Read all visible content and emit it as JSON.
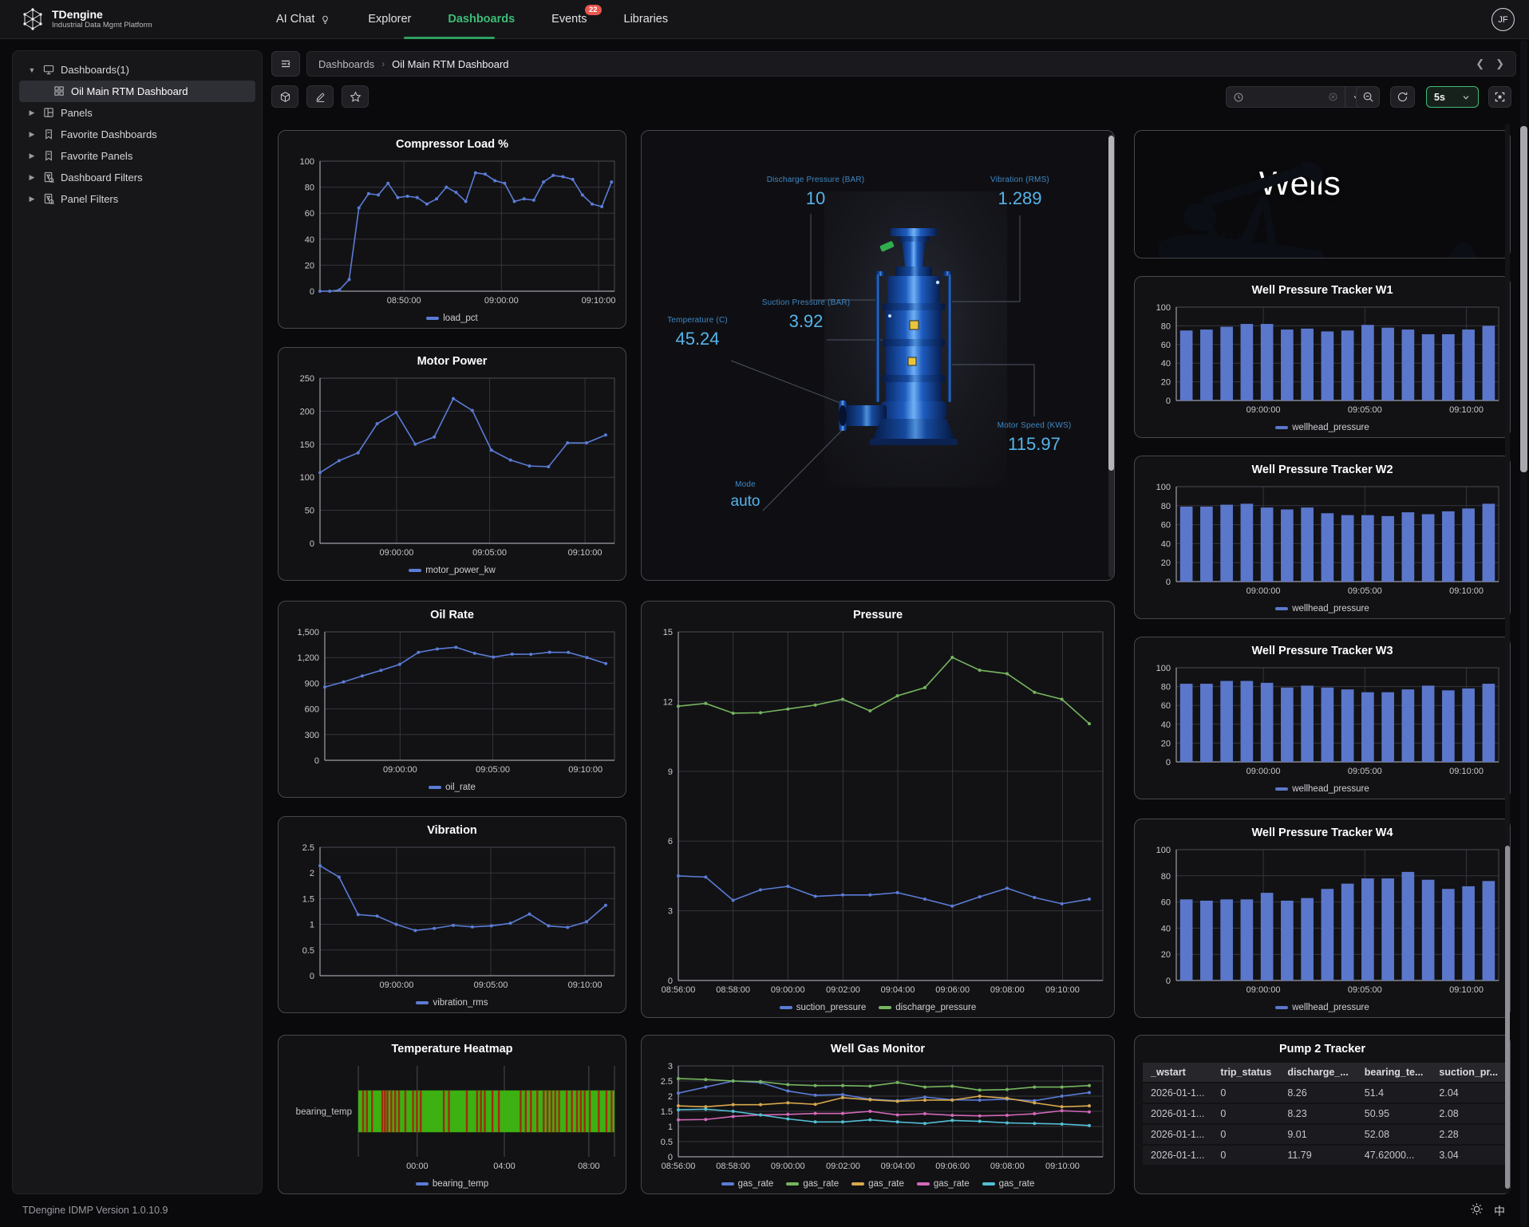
{
  "topnav": {
    "brand": "TDengine",
    "brand_sub": "Industrial Data Mgmt Platform",
    "items": [
      {
        "label": "AI Chat"
      },
      {
        "label": "Explorer"
      },
      {
        "label": "Dashboards"
      },
      {
        "label": "Events",
        "badge": "22"
      },
      {
        "label": "Libraries"
      }
    ],
    "avatar": "JF"
  },
  "sidebar": {
    "items": [
      {
        "label": "Dashboards(1)",
        "icon": "monitor",
        "caret": "down",
        "level": 0,
        "selected": false
      },
      {
        "label": "Oil Main RTM Dashboard",
        "icon": "grid",
        "caret": "none",
        "level": 1,
        "selected": true
      },
      {
        "label": "Panels",
        "icon": "panel",
        "caret": "right",
        "level": 0,
        "selected": false
      },
      {
        "label": "Favorite Dashboards",
        "icon": "bookmark",
        "caret": "right",
        "level": 0,
        "selected": false
      },
      {
        "label": "Favorite Panels",
        "icon": "bookmark",
        "caret": "right",
        "level": 0,
        "selected": false
      },
      {
        "label": "Dashboard Filters",
        "icon": "filter",
        "caret": "right",
        "level": 0,
        "selected": false
      },
      {
        "label": "Panel Filters",
        "icon": "filter",
        "caret": "right",
        "level": 0,
        "selected": false
      }
    ]
  },
  "breadcrumb": {
    "root": "Dashboards",
    "separator": "›",
    "current": "Oil Main RTM Dashboard"
  },
  "toolbar": {
    "refresh_interval": "5s"
  },
  "footer": {
    "version": "TDengine IDMP Version 1.0.10.9",
    "lang_toggle": "中"
  },
  "wells_panel": {
    "title": "Wells"
  },
  "pump_panel": {
    "mode_value": "auto",
    "annotations": [
      {
        "label": "Discharge Pressure (BAR)",
        "value": "10"
      },
      {
        "label": "Vibration (RMS)",
        "value": "1.289"
      },
      {
        "label": "Suction Pressure (BAR)",
        "value": "3.92"
      },
      {
        "label": "Temperature (C)",
        "value": "45.24"
      },
      {
        "label": "Motor Speed (KWS)",
        "value": "115.97"
      },
      {
        "label": "Mode",
        "value": "auto"
      }
    ]
  },
  "table": {
    "title": "Pump 2 Tracker",
    "headers": [
      "_wstart",
      "trip_status",
      "discharge_...",
      "bearing_te...",
      "suction_pr..."
    ],
    "rows": [
      [
        "2026-01-1...",
        "0",
        "8.26",
        "51.4",
        "2.04"
      ],
      [
        "2026-01-1...",
        "0",
        "8.23",
        "50.95",
        "2.08"
      ],
      [
        "2026-01-1...",
        "0",
        "9.01",
        "52.08",
        "2.28"
      ],
      [
        "2026-01-1...",
        "0",
        "11.79",
        "47.62000...",
        "3.04"
      ]
    ]
  },
  "chart_data": [
    {
      "id": "compressor",
      "type": "line",
      "title": "Compressor Load %",
      "ylim": [
        0,
        100
      ],
      "yticks": [
        0,
        20,
        40,
        60,
        80,
        100
      ],
      "ylabels": [
        "0",
        "20",
        "40",
        "60",
        "80",
        "100"
      ],
      "xticks": [
        {
          "f": 0.285,
          "label": "08:50:00"
        },
        {
          "f": 0.616,
          "label": "09:00:00"
        },
        {
          "f": 0.946,
          "label": "09:10:00"
        }
      ],
      "xlast": 0.99,
      "series": [
        {
          "name": "load_pct",
          "color": "#5b7cd5",
          "values": [
            0,
            0,
            1,
            9,
            64,
            75,
            74,
            83,
            72,
            73,
            72,
            67,
            71,
            80,
            76,
            69,
            91,
            90,
            85,
            83,
            69,
            71,
            70,
            84,
            89,
            88,
            86,
            74,
            67,
            65,
            84
          ]
        }
      ]
    },
    {
      "id": "motor",
      "type": "line",
      "title": "Motor Power",
      "ylim": [
        0,
        250
      ],
      "yticks": [
        0,
        50,
        100,
        150,
        200,
        250
      ],
      "ylabels": [
        "0",
        "50",
        "100",
        "150",
        "200",
        "250"
      ],
      "xticks": [
        {
          "f": 0.26,
          "label": "09:00:00"
        },
        {
          "f": 0.576,
          "label": "09:05:00"
        },
        {
          "f": 0.9,
          "label": "09:10:00"
        }
      ],
      "xlast": 0.97,
      "series": [
        {
          "name": "motor_power_kw",
          "color": "#5b7cd5",
          "values": [
            107,
            125,
            137,
            181,
            198,
            150,
            161,
            219,
            201,
            141,
            126,
            117,
            116,
            152,
            152,
            164
          ]
        }
      ]
    },
    {
      "id": "oil",
      "type": "line",
      "title": "Oil Rate",
      "ylim": [
        0,
        1500
      ],
      "yticks": [
        0,
        300,
        600,
        900,
        1200,
        1500
      ],
      "ylabels": [
        "0",
        "300",
        "600",
        "900",
        "1,200",
        "1,500"
      ],
      "xticks": [
        {
          "f": 0.26,
          "label": "09:00:00"
        },
        {
          "f": 0.58,
          "label": "09:05:00"
        },
        {
          "f": 0.9,
          "label": "09:10:00"
        }
      ],
      "xlast": 0.97,
      "series": [
        {
          "name": "oil_rate",
          "color": "#5b7cd5",
          "values": [
            855,
            915,
            985,
            1050,
            1120,
            1260,
            1300,
            1320,
            1250,
            1205,
            1240,
            1238,
            1262,
            1260,
            1200,
            1130
          ]
        }
      ]
    },
    {
      "id": "vib",
      "type": "line",
      "title": "Vibration",
      "ylim": [
        0,
        2.5
      ],
      "yticks": [
        0,
        0.5,
        1,
        1.5,
        2,
        2.5
      ],
      "ylabels": [
        "0",
        "0.5",
        "1",
        "1.5",
        "2",
        "2.5"
      ],
      "xticks": [
        {
          "f": 0.26,
          "label": "09:00:00"
        },
        {
          "f": 0.58,
          "label": "09:05:00"
        },
        {
          "f": 0.9,
          "label": "09:10:00"
        }
      ],
      "xlast": 0.97,
      "series": [
        {
          "name": "vibration_rms",
          "color": "#5b7cd5",
          "values": [
            2.14,
            1.92,
            1.19,
            1.16,
            1.0,
            0.88,
            0.92,
            0.98,
            0.95,
            0.97,
            1.02,
            1.2,
            0.97,
            0.94,
            1.05,
            1.37
          ]
        }
      ]
    },
    {
      "id": "pressure",
      "type": "line",
      "title": "Pressure",
      "ylim": [
        0,
        15
      ],
      "yticks": [
        0,
        3,
        6,
        9,
        12,
        15
      ],
      "ylabels": [
        "0",
        "3",
        "6",
        "9",
        "12",
        "15"
      ],
      "xticks": [
        {
          "f": 0.0,
          "label": "08:56:00"
        },
        {
          "f": 0.129,
          "label": "08:58:00"
        },
        {
          "f": 0.258,
          "label": "09:00:00"
        },
        {
          "f": 0.388,
          "label": "09:02:00"
        },
        {
          "f": 0.517,
          "label": "09:04:00"
        },
        {
          "f": 0.646,
          "label": "09:06:00"
        },
        {
          "f": 0.775,
          "label": "09:08:00"
        },
        {
          "f": 0.905,
          "label": "09:10:00"
        }
      ],
      "xlast": 0.968,
      "series": [
        {
          "name": "suction_pressure",
          "color": "#5b7cd5",
          "values": [
            4.5,
            4.45,
            3.45,
            3.9,
            4.05,
            3.62,
            3.68,
            3.68,
            3.78,
            3.5,
            3.2,
            3.6,
            3.97,
            3.57,
            3.3,
            3.5
          ]
        },
        {
          "name": "discharge_pressure",
          "color": "#76b55e",
          "values": [
            11.8,
            11.92,
            11.5,
            11.52,
            11.68,
            11.85,
            12.1,
            11.6,
            12.25,
            12.6,
            13.9,
            13.35,
            13.2,
            12.4,
            12.1,
            11.05
          ]
        }
      ]
    },
    {
      "id": "gas",
      "type": "line",
      "title": "Well Gas Monitor",
      "ylim": [
        0,
        3
      ],
      "yticks": [
        0,
        0.5,
        1,
        1.5,
        2,
        2.5,
        3
      ],
      "ylabels": [
        "0",
        "0.5",
        "1",
        "1.5",
        "2",
        "2.5",
        "3"
      ],
      "xticks": [
        {
          "f": 0.0,
          "label": "08:56:00"
        },
        {
          "f": 0.129,
          "label": "08:58:00"
        },
        {
          "f": 0.258,
          "label": "09:00:00"
        },
        {
          "f": 0.388,
          "label": "09:02:00"
        },
        {
          "f": 0.517,
          "label": "09:04:00"
        },
        {
          "f": 0.646,
          "label": "09:06:00"
        },
        {
          "f": 0.775,
          "label": "09:08:00"
        },
        {
          "f": 0.905,
          "label": "09:10:00"
        }
      ],
      "xlast": 0.968,
      "series": [
        {
          "name": "gas_rate",
          "color": "#5b7cd5",
          "values": [
            2.1,
            2.3,
            2.5,
            2.45,
            2.17,
            2.03,
            2.05,
            1.9,
            1.85,
            1.97,
            1.88,
            1.87,
            1.9,
            1.85,
            2.0,
            2.12
          ]
        },
        {
          "name": "gas_rate",
          "color": "#76b55e",
          "values": [
            2.58,
            2.55,
            2.5,
            2.48,
            2.38,
            2.35,
            2.35,
            2.33,
            2.45,
            2.3,
            2.33,
            2.2,
            2.22,
            2.3,
            2.3,
            2.35
          ]
        },
        {
          "name": "gas_rate",
          "color": "#d9a84c",
          "values": [
            1.68,
            1.65,
            1.72,
            1.72,
            1.78,
            1.73,
            1.95,
            1.88,
            1.83,
            1.87,
            1.87,
            2.0,
            1.93,
            1.78,
            1.65,
            1.68
          ]
        },
        {
          "name": "gas_rate",
          "color": "#d468b8",
          "values": [
            1.22,
            1.23,
            1.33,
            1.38,
            1.4,
            1.43,
            1.43,
            1.5,
            1.38,
            1.42,
            1.37,
            1.35,
            1.37,
            1.42,
            1.52,
            1.48
          ]
        },
        {
          "name": "gas_rate",
          "color": "#52bfd4",
          "values": [
            1.55,
            1.57,
            1.5,
            1.38,
            1.25,
            1.15,
            1.15,
            1.22,
            1.15,
            1.1,
            1.2,
            1.17,
            1.12,
            1.1,
            1.08,
            1.03
          ]
        }
      ]
    },
    {
      "id": "w1",
      "type": "bar",
      "title": "Well Pressure Tracker W1",
      "ylim": [
        0,
        100
      ],
      "yticks": [
        0,
        20,
        40,
        60,
        80,
        100
      ],
      "ylabels": [
        "0",
        "20",
        "40",
        "60",
        "80",
        "100"
      ],
      "xticks": [
        {
          "f": 0.27,
          "label": "09:00:00"
        },
        {
          "f": 0.585,
          "label": "09:05:00"
        },
        {
          "f": 0.9,
          "label": "09:10:00"
        }
      ],
      "series": [
        {
          "name": "wellhead_pressure",
          "color": "#5b77cc",
          "values": [
            75,
            76,
            79,
            82,
            82,
            76,
            77,
            74,
            75,
            81,
            78,
            76,
            71,
            71,
            76,
            80
          ]
        }
      ]
    },
    {
      "id": "w2",
      "type": "bar",
      "title": "Well Pressure Tracker W2",
      "ylim": [
        0,
        100
      ],
      "yticks": [
        0,
        20,
        40,
        60,
        80,
        100
      ],
      "ylabels": [
        "0",
        "20",
        "40",
        "60",
        "80",
        "100"
      ],
      "xticks": [
        {
          "f": 0.27,
          "label": "09:00:00"
        },
        {
          "f": 0.585,
          "label": "09:05:00"
        },
        {
          "f": 0.9,
          "label": "09:10:00"
        }
      ],
      "series": [
        {
          "name": "wellhead_pressure",
          "color": "#5b77cc",
          "values": [
            79,
            79,
            81,
            82,
            78,
            76,
            78,
            72,
            70,
            70,
            69,
            73,
            71,
            74,
            77,
            82
          ]
        }
      ]
    },
    {
      "id": "w3",
      "type": "bar",
      "title": "Well Pressure Tracker W3",
      "ylim": [
        0,
        100
      ],
      "yticks": [
        0,
        20,
        40,
        60,
        80,
        100
      ],
      "ylabels": [
        "0",
        "20",
        "40",
        "60",
        "80",
        "100"
      ],
      "xticks": [
        {
          "f": 0.27,
          "label": "09:00:00"
        },
        {
          "f": 0.585,
          "label": "09:05:00"
        },
        {
          "f": 0.9,
          "label": "09:10:00"
        }
      ],
      "series": [
        {
          "name": "wellhead_pressure",
          "color": "#5b77cc",
          "values": [
            83,
            83,
            86,
            86,
            84,
            79,
            81,
            79,
            77,
            74,
            74,
            77,
            81,
            76,
            78,
            83
          ]
        }
      ]
    },
    {
      "id": "w4",
      "type": "bar",
      "title": "Well Pressure Tracker W4",
      "ylim": [
        0,
        100
      ],
      "yticks": [
        0,
        20,
        40,
        60,
        80,
        100
      ],
      "ylabels": [
        "0",
        "20",
        "40",
        "60",
        "80",
        "100"
      ],
      "xticks": [
        {
          "f": 0.27,
          "label": "09:00:00"
        },
        {
          "f": 0.585,
          "label": "09:05:00"
        },
        {
          "f": 0.9,
          "label": "09:10:00"
        }
      ],
      "series": [
        {
          "name": "wellhead_pressure",
          "color": "#5b77cc",
          "values": [
            62,
            61,
            62,
            62,
            67,
            61,
            63,
            70,
            74,
            78,
            78,
            83,
            77,
            70,
            72,
            76
          ]
        }
      ]
    },
    {
      "id": "heat",
      "type": "heatmap",
      "title": "Temperature Heatmap",
      "row_label": "bearing_temp",
      "band_color": "#3db012",
      "stripe_color": "#a02b10",
      "xticks": [
        {
          "f": 0.23,
          "label": "00:00"
        },
        {
          "f": 0.57,
          "label": "04:00"
        },
        {
          "f": 0.9,
          "label": "08:00"
        }
      ],
      "stripes": [
        0.015,
        0.03,
        0.05,
        0.09,
        0.1,
        0.11,
        0.125,
        0.14,
        0.155,
        0.18,
        0.21,
        0.225,
        0.24,
        0.33,
        0.35,
        0.42,
        0.46,
        0.475,
        0.49,
        0.52,
        0.545,
        0.63,
        0.65,
        0.67,
        0.695,
        0.72,
        0.735,
        0.75,
        0.765,
        0.78,
        0.81,
        0.83,
        0.85,
        0.865,
        0.88,
        0.9,
        0.935,
        0.965,
        0.985
      ],
      "series": [
        {
          "name": "bearing_temp",
          "color": "#5b7cd5",
          "values": []
        }
      ]
    }
  ]
}
